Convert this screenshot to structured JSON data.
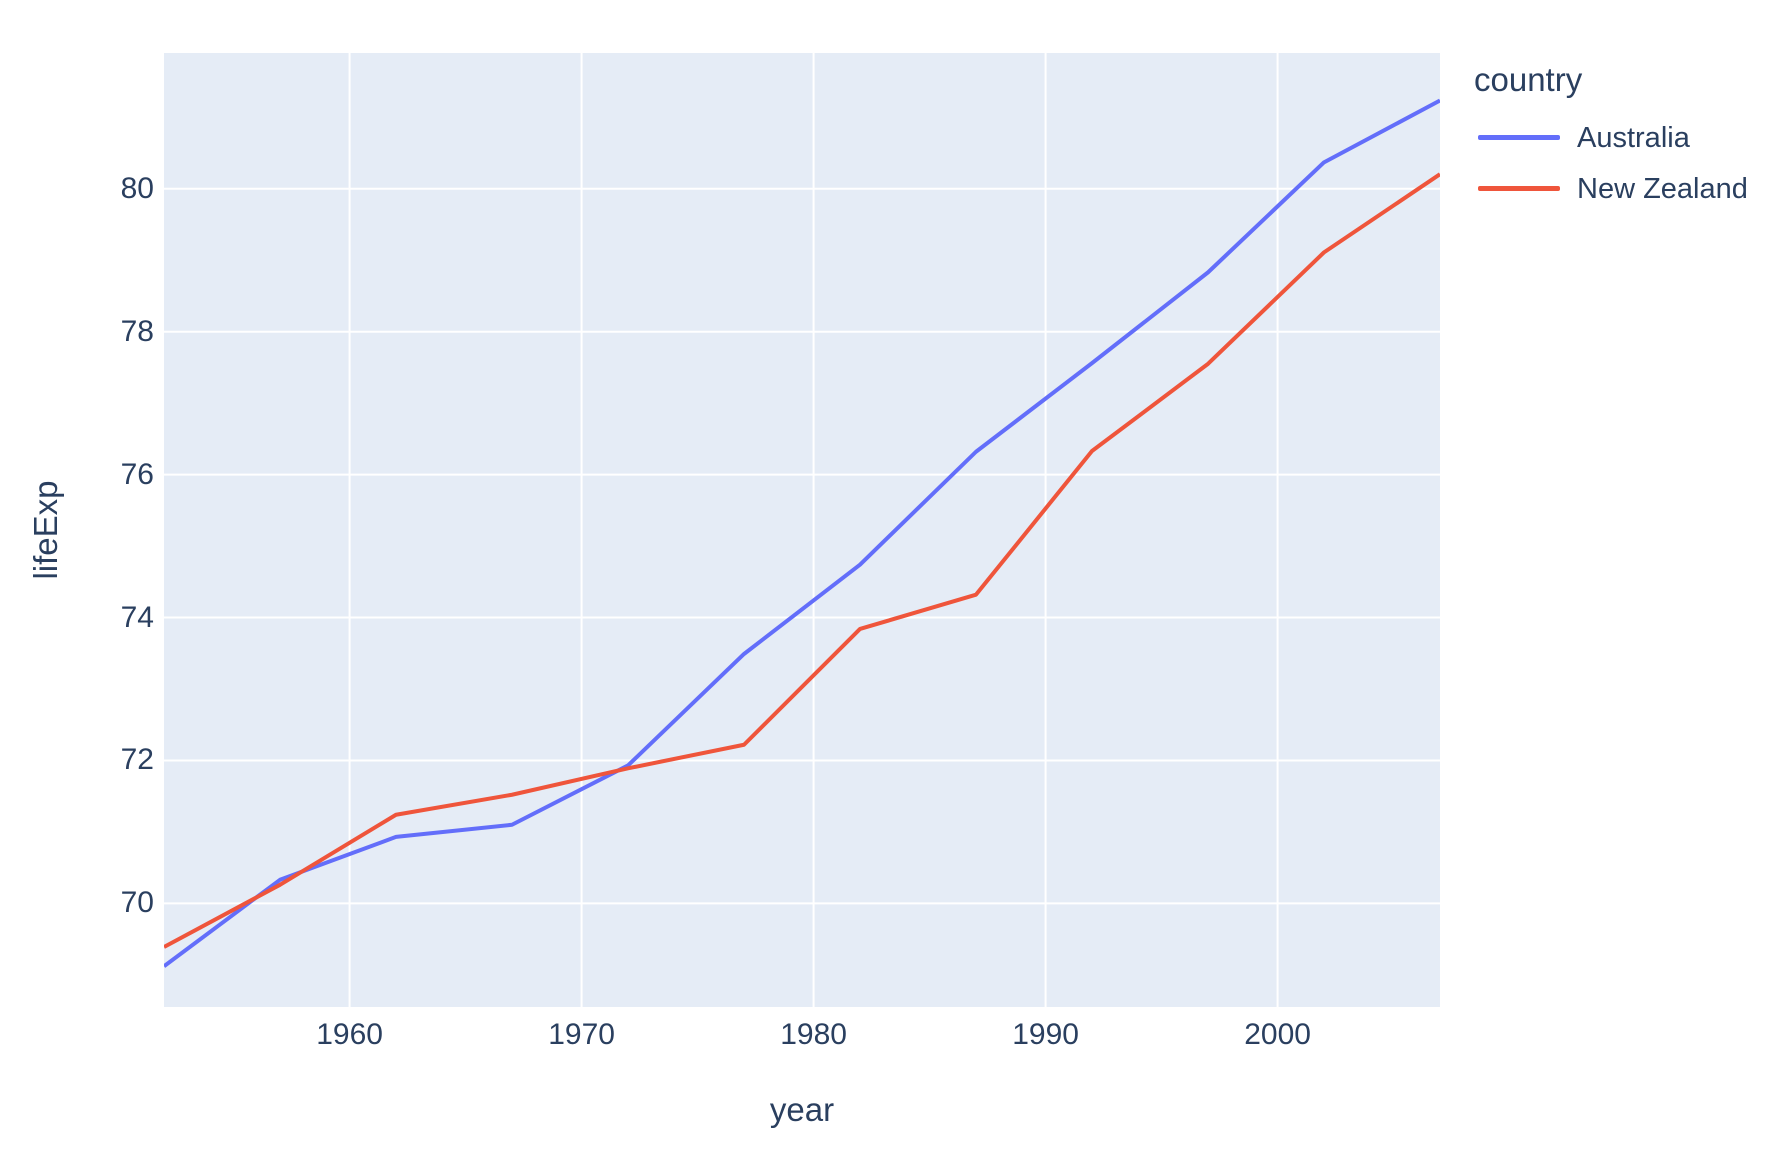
{
  "chart_data": {
    "type": "line",
    "title": "",
    "xlabel": "year",
    "ylabel": "lifeExp",
    "legend_title": "country",
    "x": [
      1952,
      1957,
      1962,
      1967,
      1972,
      1977,
      1982,
      1987,
      1992,
      1997,
      2002,
      2007
    ],
    "series": [
      {
        "name": "Australia",
        "color": "#636EFA",
        "values": [
          69.12,
          70.33,
          70.93,
          71.1,
          71.93,
          73.49,
          74.74,
          76.32,
          77.56,
          78.83,
          80.37,
          81.235
        ]
      },
      {
        "name": "New Zealand",
        "color": "#EF553B",
        "values": [
          69.39,
          70.26,
          71.24,
          71.52,
          71.89,
          72.22,
          73.84,
          74.32,
          76.33,
          77.55,
          79.11,
          80.204
        ]
      }
    ],
    "xlim": [
      1952,
      2007
    ],
    "ylim": [
      68.55,
      81.9
    ],
    "xticks": [
      1960,
      1970,
      1980,
      1990,
      2000
    ],
    "yticks": [
      70,
      72,
      74,
      76,
      78,
      80
    ],
    "grid": true,
    "legend_position": "right",
    "colors": {
      "page_bg": "#ffffff",
      "plot_bg": "#E5ECF6",
      "grid": "#ffffff",
      "text": "#2a3f5f"
    }
  }
}
